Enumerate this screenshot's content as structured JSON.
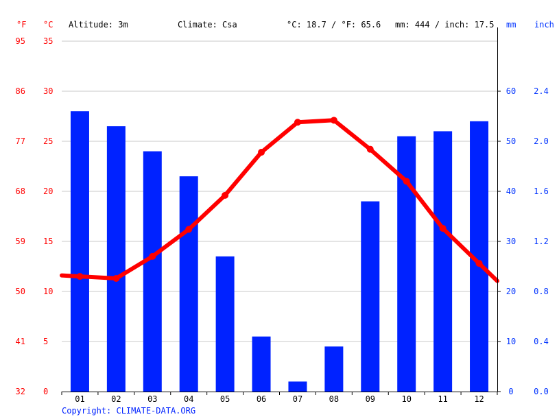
{
  "header": {
    "f_unit": "°F",
    "c_unit": "°C",
    "altitude": "Altitude: 3m",
    "climate": "Climate: Csa",
    "temp_avg": "°C: 18.7 / °F: 65.6",
    "precip_avg": "mm: 444 / inch: 17.5",
    "mm_unit": "mm",
    "inch_unit": "inch"
  },
  "copyright": "Copyright: CLIMATE-DATA.ORG",
  "colors": {
    "temperature": "#ff0000",
    "precipitation": "#0022ff",
    "grid": "#c8c8c8",
    "axis": "#000000"
  },
  "chart_data": {
    "type": "bar",
    "categories": [
      "01",
      "02",
      "03",
      "04",
      "05",
      "06",
      "07",
      "08",
      "09",
      "10",
      "11",
      "12"
    ],
    "series": [
      {
        "type": "bar",
        "axis": "right",
        "values": [
          56,
          53,
          48,
          43,
          27,
          11,
          2,
          9,
          38,
          51,
          52,
          54
        ]
      },
      {
        "type": "line",
        "axis": "left",
        "values": [
          11.5,
          11.3,
          13.5,
          16.2,
          19.6,
          23.9,
          26.9,
          27.1,
          24.2,
          21.0,
          16.3,
          12.8
        ]
      }
    ],
    "y_left": {
      "range": [
        0,
        35
      ],
      "ticks_c": [
        "0",
        "5",
        "10",
        "15",
        "20",
        "25",
        "30",
        "35"
      ],
      "ticks_f": [
        "32",
        "41",
        "50",
        "59",
        "68",
        "77",
        "86",
        "95"
      ]
    },
    "y_right": {
      "range": [
        0,
        70
      ],
      "ticks_mm": [
        "0",
        "10",
        "20",
        "30",
        "40",
        "50",
        "60"
      ],
      "ticks_inch": [
        "0.0",
        "0.4",
        "0.8",
        "1.2",
        "1.6",
        "2.0",
        "2.4"
      ]
    },
    "grid": true
  }
}
